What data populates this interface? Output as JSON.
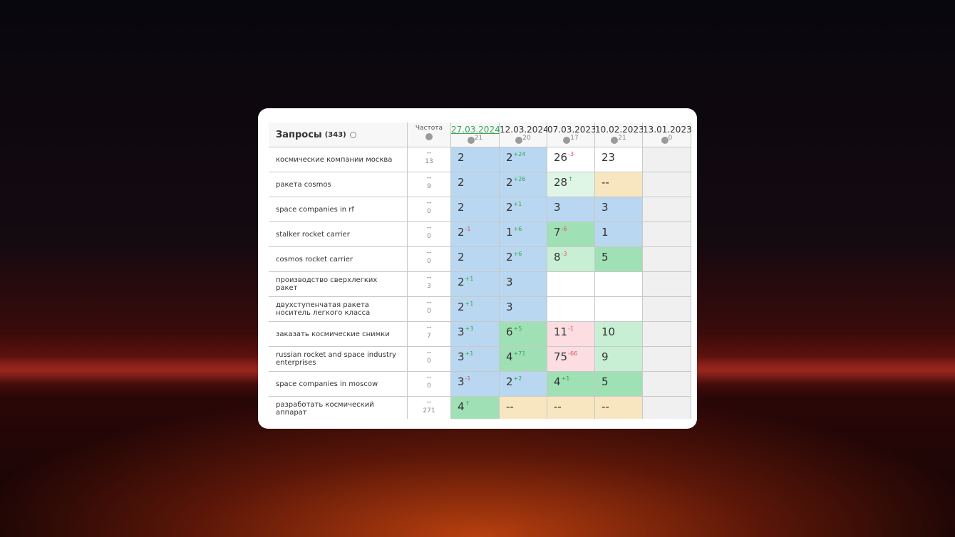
{
  "header": {
    "title": "Запросы",
    "count": "(343)",
    "freq": "Частота",
    "dates": [
      {
        "label": "27.03.2024",
        "n": 21
      },
      {
        "label": "12.03.2024",
        "n": 20
      },
      {
        "label": "07.03.2023",
        "n": 17
      },
      {
        "label": "10.02.2023",
        "n": 21
      },
      {
        "label": "13.01.2023",
        "n": 0
      }
    ]
  },
  "table": {
    "rows": [
      {
        "query": "космические компании москва",
        "freq": "--",
        "freq_n": 13,
        "cells": [
          {
            "v": 2,
            "color": "#b9d7f0"
          },
          {
            "v": 2,
            "d": "+24",
            "color": "#b9d7f0"
          },
          {
            "v": 26,
            "d": "-3",
            "color": "#ffffff"
          },
          {
            "v": 23,
            "color": "#ffffff"
          },
          {
            "color": "#f0f0f0"
          }
        ]
      },
      {
        "query": "ракета cosmos",
        "freq": "--",
        "freq_n": 9,
        "cells": [
          {
            "v": 2,
            "color": "#b9d7f0"
          },
          {
            "v": 2,
            "d": "+26",
            "color": "#b9d7f0"
          },
          {
            "v": 28,
            "d": "↑",
            "color": "#dff5e6"
          },
          {
            "v": "--",
            "color": "#f7e6bf"
          },
          {
            "color": "#f0f0f0"
          }
        ]
      },
      {
        "query": "space companies in rf",
        "freq": "--",
        "freq_n": 0,
        "cells": [
          {
            "v": 2,
            "color": "#b9d7f0"
          },
          {
            "v": 2,
            "d": "+1",
            "color": "#b9d7f0"
          },
          {
            "v": 3,
            "color": "#b9d7f0"
          },
          {
            "v": 3,
            "color": "#b9d7f0"
          },
          {
            "color": "#f0f0f0"
          }
        ]
      },
      {
        "query": "stalker rocket carrier",
        "freq": "--",
        "freq_n": 0,
        "cells": [
          {
            "v": 2,
            "d": "-1",
            "color": "#b9d7f0"
          },
          {
            "v": 1,
            "d": "+6",
            "color": "#b9d7f0"
          },
          {
            "v": 7,
            "d": "-6",
            "color": "#9fe0b5"
          },
          {
            "v": 1,
            "color": "#b9d7f0"
          },
          {
            "color": "#f0f0f0"
          }
        ]
      },
      {
        "query": "cosmos rocket carrier",
        "freq": "--",
        "freq_n": 0,
        "cells": [
          {
            "v": 2,
            "color": "#b9d7f0"
          },
          {
            "v": 2,
            "d": "+6",
            "color": "#b9d7f0"
          },
          {
            "v": 8,
            "d": "-3",
            "color": "#c8efd4"
          },
          {
            "v": 5,
            "color": "#9fe0b5"
          },
          {
            "color": "#f0f0f0"
          }
        ]
      },
      {
        "query": "производство сверхлегких ракет",
        "freq": "--",
        "freq_n": 3,
        "cells": [
          {
            "v": 2,
            "d": "+1",
            "color": "#b9d7f0"
          },
          {
            "v": 3,
            "color": "#b9d7f0"
          },
          {
            "color": "#ffffff"
          },
          {
            "color": "#ffffff"
          },
          {
            "color": "#f0f0f0"
          }
        ]
      },
      {
        "query": "двухступенчатая ракета носитель легкого класса",
        "freq": "--",
        "freq_n": 0,
        "cells": [
          {
            "v": 2,
            "d": "+1",
            "color": "#b9d7f0"
          },
          {
            "v": 3,
            "color": "#b9d7f0"
          },
          {
            "color": "#ffffff"
          },
          {
            "color": "#ffffff"
          },
          {
            "color": "#f0f0f0"
          }
        ]
      },
      {
        "query": "заказать космические снимки",
        "freq": "--",
        "freq_n": 7,
        "cells": [
          {
            "v": 3,
            "d": "+3",
            "color": "#b9d7f0"
          },
          {
            "v": 6,
            "d": "+5",
            "color": "#9fe0b5"
          },
          {
            "v": 11,
            "d": "-1",
            "color": "#fbdde2"
          },
          {
            "v": 10,
            "color": "#c8efd4"
          },
          {
            "color": "#f0f0f0"
          }
        ]
      },
      {
        "query": "russian rocket and space industry enterprises",
        "freq": "--",
        "freq_n": 0,
        "cells": [
          {
            "v": 3,
            "d": "+1",
            "color": "#b9d7f0"
          },
          {
            "v": 4,
            "d": "+71",
            "color": "#9fe0b5"
          },
          {
            "v": 75,
            "d": "-66",
            "color": "#fbdde2"
          },
          {
            "v": 9,
            "color": "#c8efd4"
          },
          {
            "color": "#f0f0f0"
          }
        ]
      },
      {
        "query": "space companies in moscow",
        "freq": "--",
        "freq_n": 0,
        "cells": [
          {
            "v": 3,
            "d": "-1",
            "color": "#b9d7f0"
          },
          {
            "v": 2,
            "d": "+2",
            "color": "#b9d7f0"
          },
          {
            "v": 4,
            "d": "+1",
            "color": "#9fe0b5"
          },
          {
            "v": 5,
            "color": "#9fe0b5"
          },
          {
            "color": "#f0f0f0"
          }
        ]
      },
      {
        "query": "разработать космический аппарат",
        "freq": "--",
        "freq_n": 271,
        "cells": [
          {
            "v": 4,
            "d": "↑",
            "color": "#9fe0b5"
          },
          {
            "v": "--",
            "color": "#f7e6bf"
          },
          {
            "v": "--",
            "color": "#f7e6bf"
          },
          {
            "v": "--",
            "color": "#f7e6bf"
          },
          {
            "color": "#f0f0f0"
          }
        ]
      }
    ]
  }
}
